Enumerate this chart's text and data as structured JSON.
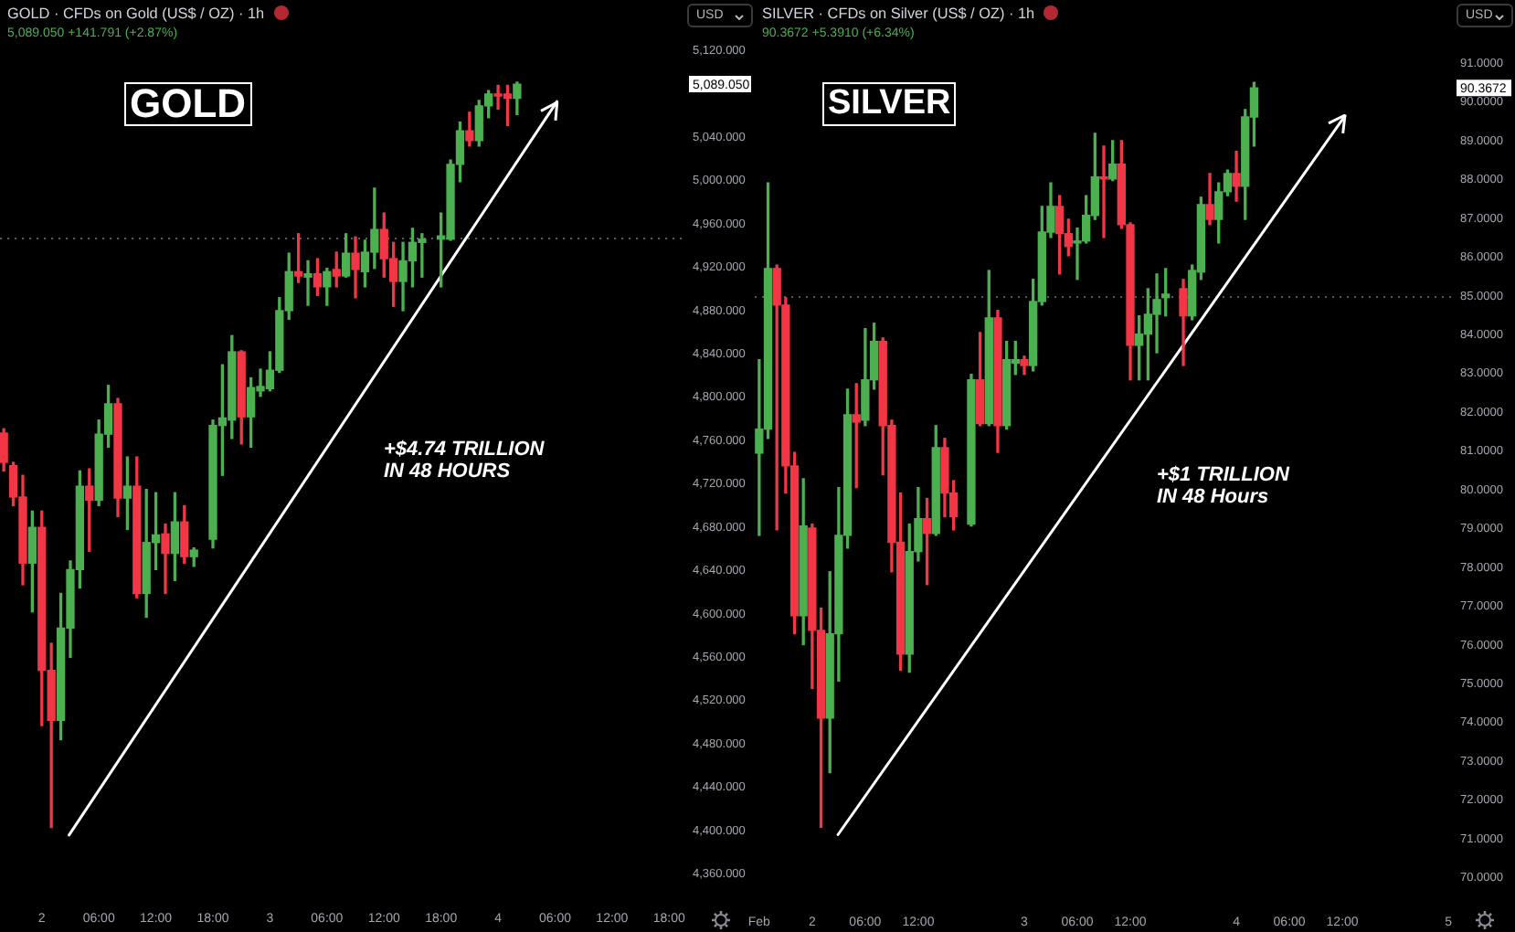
{
  "chart_data": [
    {
      "type": "candlestick",
      "title": "GOLD · CFDs on Gold (US$ / OZ) · 1h",
      "subtitle": "5,089.050 +141.791 (+2.87%)",
      "x": [
        "--02-01T20:00",
        "--02-01T21:00",
        "--02-01T22:00",
        "--02-01T23:00",
        "--02-02T00:00",
        "--02-02T01:00",
        "--02-02T02:00",
        "--02-02T03:00",
        "--02-02T04:00",
        "--02-02T05:00",
        "--02-02T06:00",
        "--02-02T07:00",
        "--02-02T08:00",
        "--02-02T09:00",
        "--02-02T10:00",
        "--02-02T11:00",
        "--02-02T12:00",
        "--02-02T13:00",
        "--02-02T14:00",
        "--02-02T15:00",
        "--02-02T16:00",
        "--02-02T18:00",
        "--02-02T19:00",
        "--02-02T20:00",
        "--02-02T21:00",
        "--02-02T22:00",
        "--02-02T23:00",
        "--02-03T00:00",
        "--02-03T01:00",
        "--02-03T02:00",
        "--02-03T03:00",
        "--02-03T04:00",
        "--02-03T05:00",
        "--02-03T06:00",
        "--02-03T07:00",
        "--02-03T08:00",
        "--02-03T09:00",
        "--02-03T10:00",
        "--02-03T11:00",
        "--02-03T12:00",
        "--02-03T13:00",
        "--02-03T14:00",
        "--02-03T15:00",
        "--02-03T16:00",
        "--02-03T18:00",
        "--02-03T19:00",
        "--02-03T20:00",
        "--02-03T21:00",
        "--02-03T22:00",
        "--02-03T23:00",
        "--02-04T00:00",
        "--02-04T01:00",
        "--02-04T02:00"
      ],
      "ohlc": [
        [
          4767,
          4771,
          4732,
          4740
        ],
        [
          4737,
          4740,
          4700,
          4708
        ],
        [
          4708,
          4728,
          4627,
          4647
        ],
        [
          4647,
          4695,
          4602,
          4680
        ],
        [
          4680,
          4695,
          4497,
          4548
        ],
        [
          4548,
          4573,
          4403,
          4502
        ],
        [
          4502,
          4619,
          4484,
          4587
        ],
        [
          4587,
          4649,
          4560,
          4641
        ],
        [
          4641,
          4732,
          4624,
          4718
        ],
        [
          4718,
          4734,
          4658,
          4705
        ],
        [
          4705,
          4779,
          4700,
          4766
        ],
        [
          4766,
          4811,
          4754,
          4794
        ],
        [
          4794,
          4799,
          4690,
          4707
        ],
        [
          4707,
          4745,
          4678,
          4718
        ],
        [
          4718,
          4745,
          4615,
          4619
        ],
        [
          4619,
          4715,
          4597,
          4666
        ],
        [
          4666,
          4712,
          4641,
          4673
        ],
        [
          4674,
          4683,
          4619,
          4656
        ],
        [
          4656,
          4712,
          4631,
          4685
        ],
        [
          4685,
          4700,
          4647,
          4653
        ],
        [
          4653,
          4661,
          4644,
          4659
        ],
        [
          4669,
          4779,
          4661,
          4774
        ],
        [
          4774,
          4830,
          4728,
          4781
        ],
        [
          4779,
          4857,
          4762,
          4842
        ],
        [
          4842,
          4843,
          4757,
          4782
        ],
        [
          4782,
          4818,
          4754,
          4809
        ],
        [
          4806,
          4826,
          4801,
          4810
        ],
        [
          4808,
          4842,
          4806,
          4825
        ],
        [
          4825,
          4892,
          4823,
          4880
        ],
        [
          4880,
          4933,
          4872,
          4916
        ],
        [
          4916,
          4951,
          4906,
          4912
        ],
        [
          4911,
          4926,
          4885,
          4914
        ],
        [
          4914,
          4928,
          4894,
          4902
        ],
        [
          4902,
          4919,
          4885,
          4916
        ],
        [
          4918,
          4934,
          4902,
          4912
        ],
        [
          4912,
          4951,
          4911,
          4933
        ],
        [
          4933,
          4948,
          4892,
          4918
        ],
        [
          4916,
          4945,
          4902,
          4934
        ],
        [
          4934,
          4993,
          4919,
          4955
        ],
        [
          4955,
          4970,
          4911,
          4928
        ],
        [
          4928,
          4943,
          4884,
          4907
        ],
        [
          4907,
          4943,
          4880,
          4926
        ],
        [
          4926,
          4956,
          4902,
          4943
        ],
        [
          4943,
          4951,
          4911,
          4946
        ],
        [
          4946,
          4970,
          4902,
          4949
        ],
        [
          4946,
          5019,
          4945,
          5015
        ],
        [
          5015,
          5054,
          4999,
          5046
        ],
        [
          5046,
          5063,
          5032,
          5037
        ],
        [
          5037,
          5074,
          5032,
          5069
        ],
        [
          5069,
          5083,
          5058,
          5080
        ],
        [
          5080,
          5088,
          5066,
          5078
        ],
        [
          5080,
          5088,
          5051,
          5076
        ],
        [
          5076,
          5091,
          5061,
          5089.05
        ]
      ],
      "colors": [
        "#f23645",
        "#f23645",
        "#f23645",
        "#4caf50",
        "#f23645",
        "#f23645",
        "#4caf50",
        "#4caf50",
        "#4caf50",
        "#f23645",
        "#4caf50",
        "#4caf50",
        "#f23645",
        "#4caf50",
        "#f23645",
        "#4caf50",
        "#4caf50",
        "#f23645",
        "#4caf50",
        "#f23645",
        "#4caf50",
        "#4caf50",
        "#4caf50",
        "#4caf50",
        "#f23645",
        "#4caf50",
        "#4caf50",
        "#4caf50",
        "#4caf50",
        "#4caf50",
        "#f23645",
        "#4caf50",
        "#f23645",
        "#4caf50",
        "#f23645",
        "#4caf50",
        "#f23645",
        "#4caf50",
        "#4caf50",
        "#f23645",
        "#f23645",
        "#4caf50",
        "#4caf50",
        "#4caf50",
        "#4caf50",
        "#4caf50",
        "#4caf50",
        "#f23645",
        "#4caf50",
        "#4caf50",
        "#f23645",
        "#f23645",
        "#4caf50"
      ],
      "series": [
        {
          "type": "line",
          "x": [
            "--02-02T02:52",
            "--02-04T06:12"
          ],
          "values": [
            4396,
            5073
          ],
          "color": "#ffffff"
        }
      ],
      "xlim": [
        "--02-01T19:36",
        "--02-04T19:42"
      ],
      "xticks": [
        {
          "value": "--02-02T00:00",
          "label": "2"
        },
        {
          "value": "--02-02T06:00",
          "label": "06:00"
        },
        {
          "value": "--02-02T12:00",
          "label": "12:00"
        },
        {
          "value": "--02-02T18:00",
          "label": "18:00"
        },
        {
          "value": "--02-03T00:00",
          "label": "3"
        },
        {
          "value": "--02-03T06:00",
          "label": "06:00"
        },
        {
          "value": "--02-03T12:00",
          "label": "12:00"
        },
        {
          "value": "--02-03T18:00",
          "label": "18:00"
        },
        {
          "value": "--02-04T00:00",
          "label": "4"
        },
        {
          "value": "--02-04T06:00",
          "label": "06:00"
        },
        {
          "value": "--02-04T12:00",
          "label": "12:00"
        },
        {
          "value": "--02-04T18:00",
          "label": "18:00"
        }
      ],
      "ylim": [
        4360,
        5120
      ],
      "yticks": [
        {
          "value": 4360,
          "label": "4,360.000"
        },
        {
          "value": 4400,
          "label": "4,400.000"
        },
        {
          "value": 4440,
          "label": "4,440.000"
        },
        {
          "value": 4480,
          "label": "4,480.000"
        },
        {
          "value": 4520,
          "label": "4,520.000"
        },
        {
          "value": 4560,
          "label": "4,560.000"
        },
        {
          "value": 4600,
          "label": "4,600.000"
        },
        {
          "value": 4640,
          "label": "4,640.000"
        },
        {
          "value": 4680,
          "label": "4,680.000"
        },
        {
          "value": 4720,
          "label": "4,720.000"
        },
        {
          "value": 4760,
          "label": "4,760.000"
        },
        {
          "value": 4800,
          "label": "4,800.000"
        },
        {
          "value": 4840,
          "label": "4,840.000"
        },
        {
          "value": 4880,
          "label": "4,880.000"
        },
        {
          "value": 4920,
          "label": "4,920.000"
        },
        {
          "value": 4960,
          "label": "4,960.000"
        },
        {
          "value": 5000,
          "label": "5,000.000"
        },
        {
          "value": 5040,
          "label": "5,040.000"
        },
        {
          "value": 5120,
          "label": "5,120.000"
        }
      ],
      "ref_lines": [
        {
          "axis": "y",
          "value": 4947,
          "color": "#5a5a5a",
          "line_style": "dotted"
        }
      ],
      "annotations": [
        "GOLD",
        "+$4.74 TRILLION\nIN 48 HOURS",
        "5,089.050",
        "USD"
      ]
    },
    {
      "type": "candlestick",
      "title": "SILVER · CFDs on Silver (US$ / OZ) · 1h",
      "subtitle": "90.3672 +5.3910 (+6.34%)",
      "x": [
        "--02-01T18:00",
        "--02-01T19:00",
        "--02-01T20:00",
        "--02-01T21:00",
        "--02-01T22:00",
        "--02-01T23:00",
        "--02-02T00:00",
        "--02-02T01:00",
        "--02-02T02:00",
        "--02-02T03:00",
        "--02-02T04:00",
        "--02-02T05:00",
        "--02-02T06:00",
        "--02-02T07:00",
        "--02-02T08:00",
        "--02-02T09:00",
        "--02-02T10:00",
        "--02-02T11:00",
        "--02-02T12:00",
        "--02-02T13:00",
        "--02-02T14:00",
        "--02-02T15:00",
        "--02-02T16:00",
        "--02-02T18:00",
        "--02-02T19:00",
        "--02-02T20:00",
        "--02-02T21:00",
        "--02-02T22:00",
        "--02-02T23:00",
        "--02-03T00:00",
        "--02-03T01:00",
        "--02-03T02:00",
        "--02-03T03:00",
        "--02-03T04:00",
        "--02-03T05:00",
        "--02-03T06:00",
        "--02-03T07:00",
        "--02-03T08:00",
        "--02-03T09:00",
        "--02-03T10:00",
        "--02-03T11:00",
        "--02-03T12:00",
        "--02-03T13:00",
        "--02-03T14:00",
        "--02-03T15:00",
        "--02-03T16:00",
        "--02-03T18:00",
        "--02-03T19:00",
        "--02-03T20:00",
        "--02-03T21:00",
        "--02-03T22:00",
        "--02-03T23:00",
        "--02-04T00:00",
        "--02-04T01:00",
        "--02-04T02:00"
      ],
      "ohlc": [
        [
          80.95,
          83.36,
          78.83,
          81.57
        ],
        [
          81.57,
          87.92,
          81.33,
          85.71
        ],
        [
          85.71,
          85.8,
          78.97,
          84.77
        ],
        [
          84.77,
          84.96,
          79.92,
          80.62
        ],
        [
          80.62,
          80.97,
          76.29,
          76.76
        ],
        [
          76.76,
          80.29,
          76.01,
          79.07
        ],
        [
          79.02,
          79.12,
          74.88,
          76.38
        ],
        [
          76.38,
          76.95,
          71.3,
          74.12
        ],
        [
          74.12,
          77.89,
          72.71,
          76.29
        ],
        [
          76.29,
          80.06,
          75.07,
          78.83
        ],
        [
          78.83,
          82.6,
          78.5,
          81.94
        ],
        [
          81.94,
          82.74,
          80.06,
          81.75
        ],
        [
          81.8,
          84.16,
          81.66,
          82.84
        ],
        [
          82.84,
          84.3,
          82.6,
          83.83
        ],
        [
          83.83,
          83.92,
          80.39,
          81.66
        ],
        [
          81.66,
          81.8,
          77.89,
          78.65
        ],
        [
          78.65,
          79.92,
          75.35,
          75.77
        ],
        [
          75.77,
          79.12,
          75.3,
          78.41
        ],
        [
          78.41,
          80.06,
          78.17,
          79.26
        ],
        [
          79.26,
          79.78,
          77.56,
          78.88
        ],
        [
          78.88,
          81.66,
          78.83,
          81.09
        ],
        [
          81.09,
          81.33,
          79.31,
          79.92
        ],
        [
          79.92,
          80.24,
          78.97,
          79.31
        ],
        [
          79.12,
          82.98,
          79.07,
          82.84
        ],
        [
          82.84,
          84.06,
          81.66,
          81.71
        ],
        [
          81.71,
          85.66,
          81.66,
          84.44
        ],
        [
          84.44,
          84.63,
          80.97,
          81.66
        ],
        [
          81.66,
          83.83,
          81.57,
          83.36
        ],
        [
          83.27,
          83.83,
          82.98,
          83.36
        ],
        [
          83.36,
          83.45,
          82.98,
          83.21
        ],
        [
          83.21,
          85.43,
          83.07,
          84.86
        ],
        [
          84.86,
          87.31,
          84.77,
          86.65
        ],
        [
          86.65,
          87.92,
          86.51,
          87.31
        ],
        [
          87.31,
          87.59,
          85.57,
          86.61
        ],
        [
          86.61,
          86.98,
          86.04,
          86.28
        ],
        [
          86.37,
          86.75,
          85.43,
          86.42
        ],
        [
          86.42,
          87.59,
          86.37,
          87.08
        ],
        [
          87.08,
          89.2,
          86.98,
          88.07
        ],
        [
          88.07,
          88.87,
          86.51,
          88.02
        ],
        [
          88.02,
          89.01,
          87.98,
          88.4
        ],
        [
          88.4,
          89.01,
          86.75,
          86.84
        ],
        [
          86.84,
          86.89,
          82.84,
          83.73
        ],
        [
          83.73,
          84.49,
          82.84,
          84.02
        ],
        [
          84.02,
          85.19,
          82.84,
          84.53
        ],
        [
          84.53,
          85.57,
          83.54,
          84.91
        ],
        [
          84.96,
          85.71,
          84.49,
          85.05
        ],
        [
          85.19,
          85.43,
          83.21,
          84.49
        ],
        [
          84.49,
          85.8,
          84.39,
          85.66
        ],
        [
          85.62,
          87.55,
          85.43,
          87.36
        ],
        [
          87.36,
          88.16,
          86.84,
          86.98
        ],
        [
          86.98,
          87.92,
          86.37,
          87.69
        ],
        [
          87.69,
          88.25,
          87.59,
          88.16
        ],
        [
          88.16,
          88.73,
          87.45,
          87.83
        ],
        [
          87.83,
          89.81,
          86.98,
          89.62
        ],
        [
          89.62,
          90.51,
          88.87,
          90.3672
        ]
      ],
      "colors": [
        "#4caf50",
        "#4caf50",
        "#f23645",
        "#f23645",
        "#f23645",
        "#4caf50",
        "#f23645",
        "#f23645",
        "#4caf50",
        "#4caf50",
        "#4caf50",
        "#f23645",
        "#4caf50",
        "#4caf50",
        "#f23645",
        "#f23645",
        "#f23645",
        "#4caf50",
        "#4caf50",
        "#f23645",
        "#4caf50",
        "#f23645",
        "#f23645",
        "#4caf50",
        "#f23645",
        "#4caf50",
        "#f23645",
        "#4caf50",
        "#4caf50",
        "#f23645",
        "#4caf50",
        "#4caf50",
        "#4caf50",
        "#f23645",
        "#f23645",
        "#4caf50",
        "#4caf50",
        "#4caf50",
        "#f23645",
        "#4caf50",
        "#f23645",
        "#f23645",
        "#4caf50",
        "#4caf50",
        "#4caf50",
        "#4caf50",
        "#f23645",
        "#4caf50",
        "#4caf50",
        "#f23645",
        "#4caf50",
        "#4caf50",
        "#f23645",
        "#4caf50",
        "#4caf50"
      ],
      "series": [
        {
          "type": "line",
          "x": [
            "--02-02T02:55",
            "--02-04T12:18"
          ],
          "values": [
            71.11,
            89.65
          ],
          "color": "#ffffff"
        }
      ],
      "xlim": [
        "--02-01T17:30",
        "--02-05T00:30"
      ],
      "xticks": [
        {
          "value": "--02-01T18:00",
          "label": "Feb"
        },
        {
          "value": "--02-02T00:00",
          "label": "2"
        },
        {
          "value": "--02-02T06:00",
          "label": "06:00"
        },
        {
          "value": "--02-02T12:00",
          "label": "12:00"
        },
        {
          "value": "--02-03T00:00",
          "label": "3"
        },
        {
          "value": "--02-03T06:00",
          "label": "06:00"
        },
        {
          "value": "--02-03T12:00",
          "label": "12:00"
        },
        {
          "value": "--02-04T00:00",
          "label": "4"
        },
        {
          "value": "--02-04T06:00",
          "label": "06:00"
        },
        {
          "value": "--02-04T12:00",
          "label": "12:00"
        },
        {
          "value": "--02-05T00:00",
          "label": "5"
        }
      ],
      "ylim": [
        70,
        91
      ],
      "yticks": [
        {
          "value": 70,
          "label": "70.0000"
        },
        {
          "value": 71,
          "label": "71.0000"
        },
        {
          "value": 72,
          "label": "72.0000"
        },
        {
          "value": 73,
          "label": "73.0000"
        },
        {
          "value": 74,
          "label": "74.0000"
        },
        {
          "value": 75,
          "label": "75.0000"
        },
        {
          "value": 76,
          "label": "76.0000"
        },
        {
          "value": 77,
          "label": "77.0000"
        },
        {
          "value": 78,
          "label": "78.0000"
        },
        {
          "value": 79,
          "label": "79.0000"
        },
        {
          "value": 80,
          "label": "80.0000"
        },
        {
          "value": 81,
          "label": "81.0000"
        },
        {
          "value": 82,
          "label": "82.0000"
        },
        {
          "value": 83,
          "label": "83.0000"
        },
        {
          "value": 84,
          "label": "84.0000"
        },
        {
          "value": 85,
          "label": "85.0000"
        },
        {
          "value": 86,
          "label": "86.0000"
        },
        {
          "value": 87,
          "label": "87.0000"
        },
        {
          "value": 88,
          "label": "88.0000"
        },
        {
          "value": 89,
          "label": "89.0000"
        },
        {
          "value": 90,
          "label": "90.0000"
        },
        {
          "value": 91,
          "label": "91.0000"
        }
      ],
      "ref_lines": [
        {
          "axis": "y",
          "value": 84.98,
          "color": "#5a5a5a",
          "line_style": "dotted"
        }
      ],
      "annotations": [
        "SILVER",
        "+$1 TRILLION\nIN 48 Hours",
        "90.3672",
        "USD"
      ]
    }
  ]
}
